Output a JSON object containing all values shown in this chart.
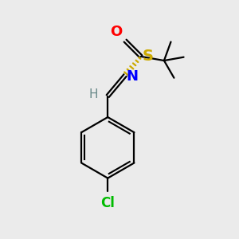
{
  "background_color": "#ebebeb",
  "figsize": [
    3.0,
    3.0
  ],
  "dpi": 100,
  "atom_colors": {
    "C": "#000000",
    "H": "#6a8a8a",
    "N": "#0000ff",
    "O": "#ff0000",
    "S": "#ccaa00",
    "Cl": "#00bb00"
  },
  "bond_color": "#000000",
  "bond_width": 1.6,
  "font_size": 12
}
